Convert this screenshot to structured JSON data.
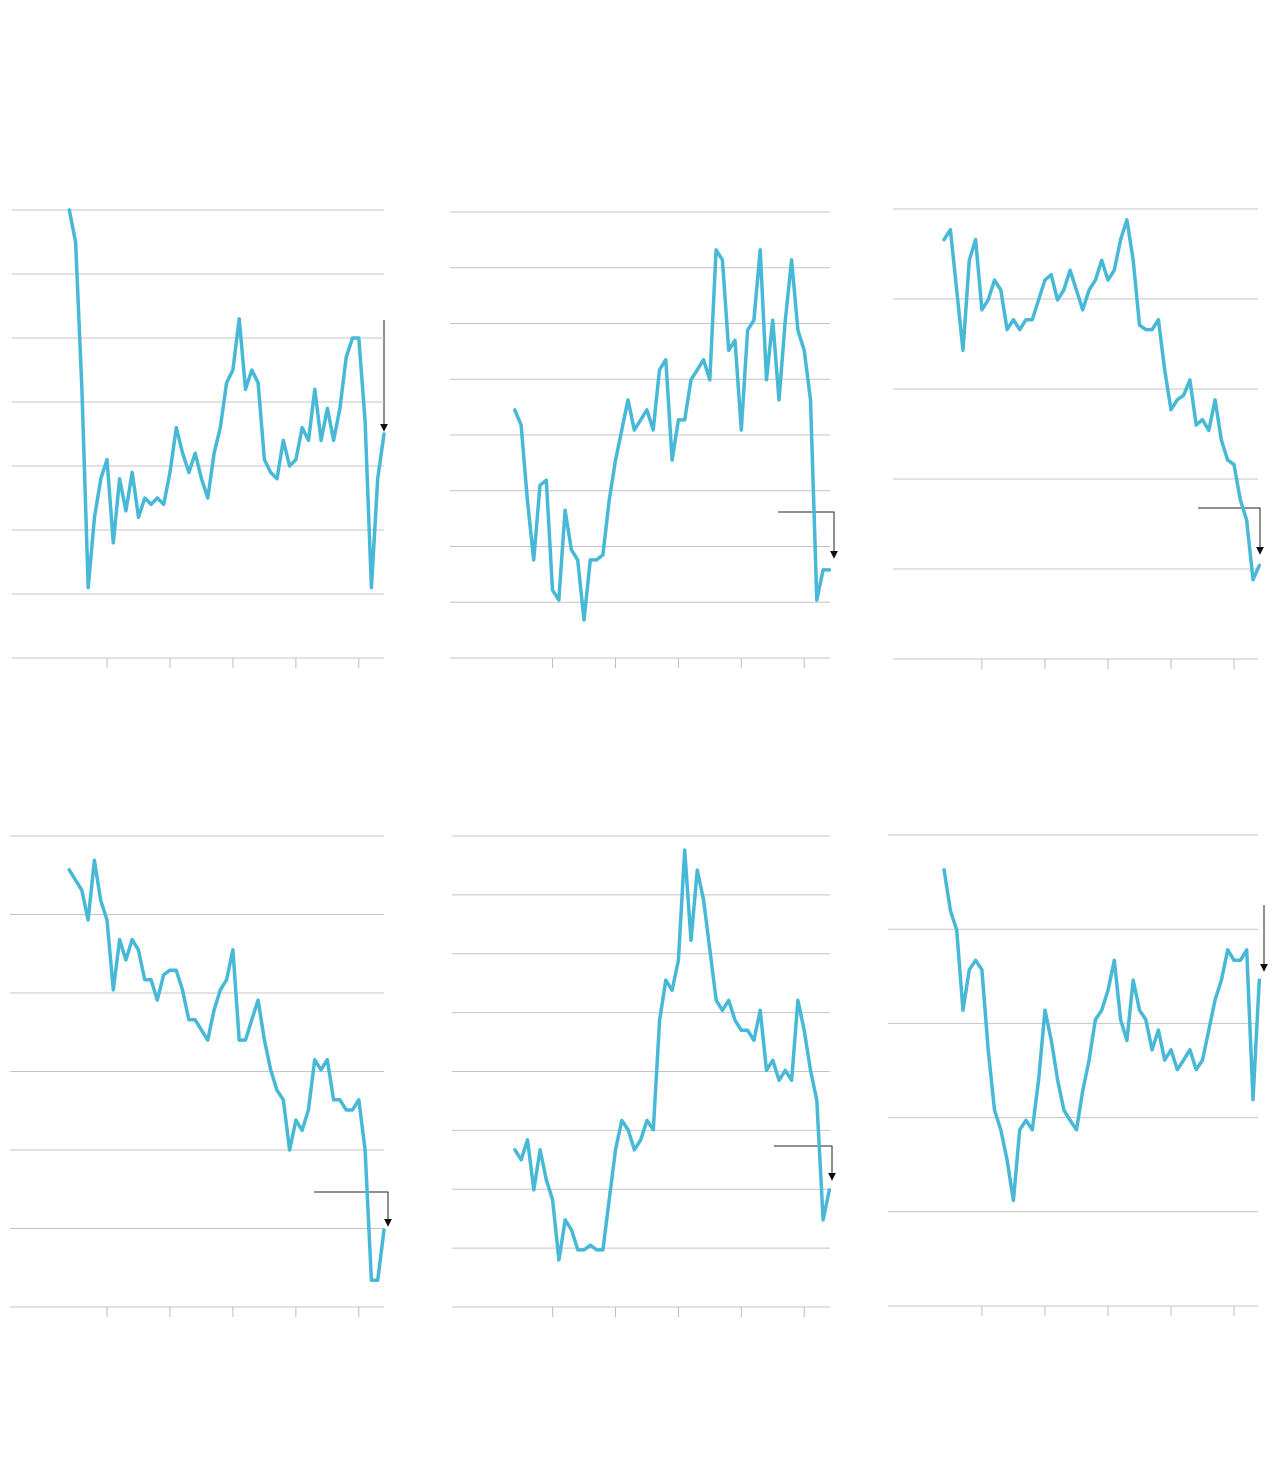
{
  "chart_data": [
    {
      "type": "line",
      "grid": true,
      "color": "#47b8d6",
      "xlim": [
        -0.51,
        5.4
      ],
      "xticks": [
        1,
        2,
        3,
        4,
        5
      ],
      "ylim": [
        0,
        7
      ],
      "yticks": [
        0,
        1,
        2,
        3,
        4,
        5,
        6,
        7
      ],
      "x": [
        0.4,
        0.5,
        0.6,
        0.7,
        0.8,
        0.9,
        1.0,
        1.1,
        1.2,
        1.3,
        1.4,
        1.5,
        1.6,
        1.7,
        1.8,
        1.9,
        2.0,
        2.1,
        2.2,
        2.3,
        2.4,
        2.5,
        2.6,
        2.7,
        2.8,
        2.9,
        3.0,
        3.1,
        3.2,
        3.3,
        3.4,
        3.5,
        3.6,
        3.7,
        3.8,
        3.9,
        4.0,
        4.1,
        4.2,
        4.3,
        4.4,
        4.5,
        4.6,
        4.7,
        4.8,
        4.9,
        5.0,
        5.1,
        5.2,
        5.3,
        5.4
      ],
      "values": [
        7.0,
        6.5,
        4.2,
        1.1,
        2.2,
        2.8,
        3.1,
        1.8,
        2.8,
        2.3,
        2.9,
        2.2,
        2.5,
        2.4,
        2.5,
        2.4,
        2.9,
        3.6,
        3.2,
        2.9,
        3.2,
        2.8,
        2.5,
        3.2,
        3.6,
        4.3,
        4.5,
        5.3,
        4.2,
        4.5,
        4.3,
        3.1,
        2.9,
        2.8,
        3.4,
        3.0,
        3.1,
        3.6,
        3.4,
        4.2,
        3.4,
        3.9,
        3.4,
        3.9,
        4.7,
        5.0,
        5.0,
        3.7,
        1.1,
        2.8,
        3.5
      ]
    },
    {
      "type": "line",
      "grid": true,
      "color": "#47b8d6",
      "xlim": [
        -0.63,
        5.41
      ],
      "xticks": [
        1,
        2,
        3,
        4,
        5
      ],
      "ylim": [
        0,
        8
      ],
      "yticks": [
        0,
        1,
        2,
        3,
        4,
        5,
        6,
        7,
        8
      ],
      "x": [
        0.4,
        0.5,
        0.6,
        0.7,
        0.8,
        0.9,
        1.0,
        1.1,
        1.2,
        1.3,
        1.4,
        1.5,
        1.6,
        1.7,
        1.8,
        1.9,
        2.0,
        2.1,
        2.2,
        2.3,
        2.4,
        2.5,
        2.6,
        2.7,
        2.8,
        2.9,
        3.0,
        3.1,
        3.2,
        3.3,
        3.4,
        3.5,
        3.6,
        3.7,
        3.8,
        3.9,
        4.0,
        4.1,
        4.2,
        4.3,
        4.4,
        4.5,
        4.6,
        4.7,
        4.8,
        4.9,
        5.0,
        5.1,
        5.2,
        5.3,
        5.4
      ],
      "values": [
        4.45,
        4.18,
        2.83,
        1.76,
        3.1,
        3.19,
        1.22,
        1.04,
        2.65,
        1.94,
        1.76,
        0.68,
        1.76,
        1.76,
        1.85,
        2.83,
        3.55,
        4.09,
        4.63,
        4.09,
        4.27,
        4.45,
        4.09,
        5.17,
        5.35,
        3.55,
        4.27,
        4.27,
        4.99,
        5.17,
        5.35,
        4.99,
        7.32,
        7.14,
        5.52,
        5.7,
        4.09,
        5.88,
        6.06,
        7.32,
        4.99,
        6.06,
        4.63,
        6.06,
        7.14,
        5.88,
        5.52,
        4.63,
        1.04,
        1.58,
        1.58
      ]
    },
    {
      "type": "line",
      "grid": true,
      "color": "#47b8d6",
      "xlim": [
        -0.41,
        5.38
      ],
      "xticks": [
        1,
        2,
        3,
        4,
        5
      ],
      "ylim": [
        0,
        5
      ],
      "yticks": [
        0,
        1,
        2,
        3,
        4,
        5
      ],
      "x": [
        0.4,
        0.5,
        0.6,
        0.7,
        0.8,
        0.9,
        1.0,
        1.1,
        1.2,
        1.3,
        1.4,
        1.5,
        1.6,
        1.7,
        1.8,
        1.9,
        2.0,
        2.1,
        2.2,
        2.3,
        2.4,
        2.5,
        2.6,
        2.7,
        2.8,
        2.9,
        3.0,
        3.1,
        3.2,
        3.3,
        3.4,
        3.5,
        3.6,
        3.7,
        3.8,
        3.9,
        4.0,
        4.1,
        4.2,
        4.3,
        4.4,
        4.5,
        4.6,
        4.7,
        4.8,
        4.9,
        5.0,
        5.1,
        5.2,
        5.3,
        5.4
      ],
      "values": [
        4.66,
        4.77,
        4.1,
        3.43,
        4.43,
        4.66,
        3.88,
        3.99,
        4.21,
        4.1,
        3.66,
        3.77,
        3.66,
        3.77,
        3.77,
        3.99,
        4.21,
        4.27,
        3.99,
        4.1,
        4.32,
        4.1,
        3.88,
        4.1,
        4.21,
        4.43,
        4.21,
        4.32,
        4.66,
        4.88,
        4.43,
        3.71,
        3.66,
        3.66,
        3.77,
        3.21,
        2.77,
        2.88,
        2.93,
        3.1,
        2.6,
        2.66,
        2.54,
        2.88,
        2.43,
        2.21,
        2.16,
        1.77,
        1.54,
        0.88,
        1.04
      ]
    },
    {
      "type": "line",
      "grid": true,
      "color": "#47b8d6",
      "xlim": [
        -0.54,
        5.4
      ],
      "xticks": [
        1,
        2,
        3,
        4,
        5
      ],
      "ylim": [
        0,
        6
      ],
      "yticks": [
        0,
        1,
        2,
        3,
        4,
        5,
        6
      ],
      "x": [
        0.4,
        0.5,
        0.6,
        0.7,
        0.8,
        0.9,
        1.0,
        1.1,
        1.2,
        1.3,
        1.4,
        1.5,
        1.6,
        1.7,
        1.8,
        1.9,
        2.0,
        2.1,
        2.2,
        2.3,
        2.4,
        2.5,
        2.6,
        2.7,
        2.8,
        2.9,
        3.0,
        3.1,
        3.2,
        3.3,
        3.4,
        3.5,
        3.6,
        3.7,
        3.8,
        3.9,
        4.0,
        4.1,
        4.2,
        4.3,
        4.4,
        4.5,
        4.6,
        4.7,
        4.8,
        4.9,
        5.0,
        5.1,
        5.2,
        5.3,
        5.4
      ],
      "values": [
        5.57,
        5.44,
        5.31,
        4.93,
        5.69,
        5.18,
        4.93,
        4.04,
        4.68,
        4.42,
        4.68,
        4.55,
        4.17,
        4.17,
        3.91,
        4.23,
        4.29,
        4.29,
        4.04,
        3.66,
        3.66,
        3.53,
        3.4,
        3.78,
        4.04,
        4.17,
        4.55,
        3.4,
        3.4,
        3.66,
        3.91,
        3.4,
        3.02,
        2.76,
        2.64,
        2.0,
        2.38,
        2.25,
        2.51,
        3.15,
        3.02,
        3.15,
        2.64,
        2.64,
        2.51,
        2.51,
        2.64,
        2.0,
        0.34,
        0.34,
        0.98
      ]
    },
    {
      "type": "line",
      "grid": true,
      "color": "#47b8d6",
      "xlim": [
        -0.6,
        5.41
      ],
      "xticks": [
        1,
        2,
        3,
        4,
        5
      ],
      "ylim": [
        0,
        8
      ],
      "yticks": [
        0,
        1,
        2,
        3,
        4,
        5,
        6,
        7,
        8
      ],
      "x": [
        0.4,
        0.5,
        0.6,
        0.7,
        0.8,
        0.9,
        1.0,
        1.1,
        1.2,
        1.3,
        1.4,
        1.5,
        1.6,
        1.7,
        1.8,
        1.9,
        2.0,
        2.1,
        2.2,
        2.3,
        2.4,
        2.5,
        2.6,
        2.7,
        2.8,
        2.9,
        3.0,
        3.1,
        3.2,
        3.3,
        3.4,
        3.5,
        3.6,
        3.7,
        3.8,
        3.9,
        4.0,
        4.1,
        4.2,
        4.3,
        4.4,
        4.5,
        4.6,
        4.7,
        4.8,
        4.9,
        5.0,
        5.1,
        5.2,
        5.3,
        5.4
      ],
      "values": [
        2.67,
        2.5,
        2.84,
        1.99,
        2.67,
        2.16,
        1.82,
        0.8,
        1.48,
        1.31,
        0.97,
        0.97,
        1.05,
        0.97,
        0.97,
        1.82,
        2.67,
        3.17,
        3.01,
        2.67,
        2.84,
        3.17,
        3.01,
        4.87,
        5.55,
        5.38,
        5.89,
        7.76,
        6.23,
        7.42,
        6.91,
        6.06,
        5.21,
        5.04,
        5.21,
        4.87,
        4.7,
        4.7,
        4.53,
        5.04,
        4.02,
        4.19,
        3.85,
        4.02,
        3.85,
        5.21,
        4.7,
        4.02,
        3.51,
        1.48,
        1.99
      ]
    },
    {
      "type": "line",
      "grid": true,
      "color": "#47b8d6",
      "xlim": [
        -0.49,
        5.38
      ],
      "xticks": [
        1,
        2,
        3,
        4,
        5
      ],
      "ylim": [
        0,
        5
      ],
      "yticks": [
        0,
        1,
        2,
        3,
        4,
        5
      ],
      "x": [
        0.4,
        0.5,
        0.6,
        0.7,
        0.8,
        0.9,
        1.0,
        1.1,
        1.2,
        1.3,
        1.4,
        1.5,
        1.6,
        1.7,
        1.8,
        1.9,
        2.0,
        2.1,
        2.2,
        2.3,
        2.4,
        2.5,
        2.6,
        2.7,
        2.8,
        2.9,
        3.0,
        3.1,
        3.2,
        3.3,
        3.4,
        3.5,
        3.6,
        3.7,
        3.8,
        3.9,
        4.0,
        4.1,
        4.2,
        4.3,
        4.4,
        4.5,
        4.6,
        4.7,
        4.8,
        4.9,
        5.0,
        5.1,
        5.2,
        5.3,
        5.4
      ],
      "values": [
        4.63,
        4.2,
        3.99,
        3.14,
        3.57,
        3.67,
        3.57,
        2.72,
        2.08,
        1.87,
        1.55,
        1.12,
        1.87,
        1.97,
        1.87,
        2.4,
        3.14,
        2.82,
        2.4,
        2.08,
        1.97,
        1.87,
        2.29,
        2.61,
        3.04,
        3.14,
        3.35,
        3.67,
        3.04,
        2.82,
        3.46,
        3.14,
        3.04,
        2.72,
        2.93,
        2.61,
        2.72,
        2.51,
        2.61,
        2.72,
        2.51,
        2.61,
        2.93,
        3.25,
        3.46,
        3.78,
        3.67,
        3.67,
        3.78,
        2.19,
        3.46
      ]
    }
  ]
}
